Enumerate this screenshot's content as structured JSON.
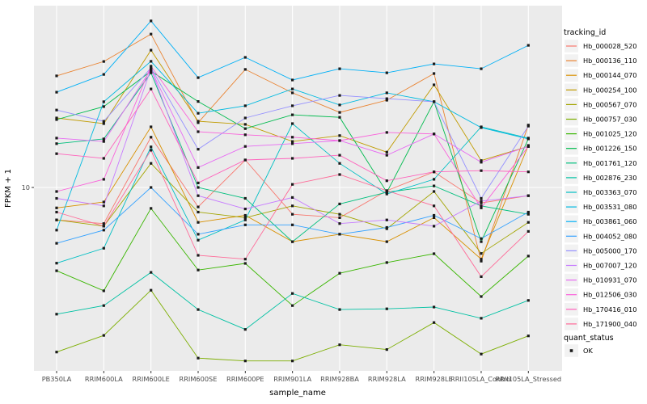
{
  "figure": {
    "y_axis": {
      "label": "FPKM + 1",
      "tick_label": "10",
      "tick_value": 10
    },
    "x_axis": {
      "label": "sample_name"
    },
    "legend": {
      "tracking_title": "tracking_id",
      "quant_title": "quant_status",
      "quant_items": [
        {
          "label": "OK",
          "marker_color": "#1A1A1A"
        }
      ]
    },
    "panel_background": "#EBEBEB",
    "gridline_color": "#FFFFFF",
    "point_color": "#1A1A1A"
  },
  "chart_data": {
    "type": "line",
    "title": "",
    "xlabel": "sample_name",
    "ylabel": "FPKM + 1",
    "y_scale": "log10",
    "y_ticks": [
      10
    ],
    "ylim": [
      1.05,
      90
    ],
    "grid": "major-on",
    "legend_position": "right",
    "marker": "small-black-square",
    "categories": [
      "PB350LA",
      "RRIM600LA",
      "RRIM600LE",
      "RRIM600SE",
      "RRIM600PE",
      "RRIM901LA",
      "RRIM928BA",
      "RRIM928LA",
      "RRIM928LE",
      "RRII105LA_Control",
      "RRII105LA_Stressed"
    ],
    "series": [
      {
        "name": "Hb_000028_520",
        "color": "#F8766D",
        "quant_status": "OK",
        "values": [
          6.6,
          6.3,
          19.0,
          7.8,
          14.2,
          7.1,
          6.8,
          9.6,
          12.2,
          8.2,
          9.0
        ]
      },
      {
        "name": "Hb_000136_110",
        "color": "#EA8331",
        "quant_status": "OK",
        "values": [
          41.6,
          50.0,
          71.0,
          22.9,
          45.2,
          33.5,
          26.1,
          30.5,
          42.9,
          3.9,
          22.2
        ]
      },
      {
        "name": "Hb_000144_070",
        "color": "#D89000",
        "quant_status": "OK",
        "values": [
          7.7,
          8.3,
          21.7,
          6.4,
          7.0,
          5.0,
          5.5,
          5.0,
          6.8,
          4.0,
          17.1
        ]
      },
      {
        "name": "Hb_000254_100",
        "color": "#C09B00",
        "quant_status": "OK",
        "values": [
          24.3,
          22.6,
          57.8,
          23.3,
          22.4,
          18.0,
          19.4,
          15.7,
          37.1,
          14.1,
          16.9
        ]
      },
      {
        "name": "Hb_000567_070",
        "color": "#A3A500",
        "quant_status": "OK",
        "values": [
          6.6,
          6.1,
          13.6,
          7.3,
          6.8,
          7.9,
          7.1,
          5.9,
          9.5,
          4.3,
          6.4
        ]
      },
      {
        "name": "Hb_000757_030",
        "color": "#7CAE00",
        "quant_status": "OK",
        "values": [
          1.22,
          1.51,
          2.69,
          1.13,
          1.09,
          1.09,
          1.34,
          1.26,
          1.78,
          1.19,
          1.5
        ]
      },
      {
        "name": "Hb_001025_120",
        "color": "#39B600",
        "quant_status": "OK",
        "values": [
          3.45,
          2.67,
          7.65,
          3.48,
          3.79,
          2.21,
          3.34,
          3.83,
          4.29,
          2.48,
          4.16
        ]
      },
      {
        "name": "Hb_001226_150",
        "color": "#00BB4E",
        "quant_status": "OK",
        "values": [
          23.8,
          28.1,
          44.2,
          30.0,
          21.2,
          25.3,
          24.5,
          9.4,
          29.9,
          5.0,
          18.6
        ]
      },
      {
        "name": "Hb_001761_120",
        "color": "#00BF7D",
        "quant_status": "OK",
        "values": [
          17.5,
          18.6,
          43.3,
          10.0,
          8.7,
          5.0,
          8.1,
          9.4,
          10.2,
          7.9,
          7.1
        ]
      },
      {
        "name": "Hb_002876_230",
        "color": "#00C1A3",
        "quant_status": "OK",
        "values": [
          1.98,
          2.21,
          3.38,
          2.1,
          1.63,
          2.58,
          2.1,
          2.12,
          2.17,
          1.88,
          2.36
        ]
      },
      {
        "name": "Hb_003363_070",
        "color": "#00BFC4",
        "quant_status": "OK",
        "values": [
          3.8,
          4.6,
          16.8,
          5.1,
          6.6,
          22.6,
          13.6,
          9.2,
          11.1,
          21.7,
          18.8
        ]
      },
      {
        "name": "Hb_003531_080",
        "color": "#00BAE0",
        "quant_status": "OK",
        "values": [
          5.8,
          29.9,
          50.1,
          25.8,
          28.4,
          35.2,
          28.7,
          33.5,
          29.9,
          21.5,
          18.6
        ]
      },
      {
        "name": "Hb_003861_060",
        "color": "#00B0F6",
        "quant_status": "OK",
        "values": [
          33.8,
          42.4,
          84.0,
          40.7,
          52.7,
          39.5,
          45.6,
          43.3,
          48.5,
          45.6,
          61.5
        ]
      },
      {
        "name": "Hb_004052_080",
        "color": "#35A2FF",
        "quant_status": "OK",
        "values": [
          4.9,
          5.8,
          10.0,
          5.5,
          6.2,
          6.2,
          5.5,
          6.0,
          7.0,
          5.2,
          7.3
        ]
      },
      {
        "name": "Hb_005000_170",
        "color": "#9590FF",
        "quant_status": "OK",
        "values": [
          26.9,
          23.3,
          46.1,
          16.3,
          24.3,
          28.4,
          32.4,
          31.1,
          29.9,
          8.7,
          21.9
        ]
      },
      {
        "name": "Hb_007007_120",
        "color": "#C77CFF",
        "quant_status": "OK",
        "values": [
          8.7,
          7.9,
          45.6,
          9.0,
          7.6,
          8.8,
          6.3,
          6.6,
          6.1,
          8.4,
          9.0
        ]
      },
      {
        "name": "Hb_010931_070",
        "color": "#E76BF3",
        "quant_status": "OK",
        "values": [
          18.8,
          18.0,
          45.2,
          12.9,
          16.9,
          17.5,
          18.2,
          15.1,
          19.8,
          13.8,
          16.9
        ]
      },
      {
        "name": "Hb_012506_030",
        "color": "#FA62DB",
        "quant_status": "OK",
        "values": [
          9.5,
          11.1,
          47.1,
          20.4,
          19.6,
          19.0,
          18.2,
          20.2,
          19.8,
          7.7,
          16.9
        ]
      },
      {
        "name": "Hb_170416_010",
        "color": "#FF62BC",
        "quant_status": "OK",
        "values": [
          15.4,
          14.5,
          35.2,
          10.6,
          14.2,
          14.5,
          15.1,
          10.9,
          12.2,
          12.4,
          12.2
        ]
      },
      {
        "name": "Hb_171900_040",
        "color": "#FF6A98",
        "quant_status": "OK",
        "values": [
          7.3,
          6.1,
          16.1,
          4.2,
          4.0,
          10.4,
          11.8,
          9.6,
          7.9,
          3.2,
          5.7
        ]
      }
    ]
  }
}
